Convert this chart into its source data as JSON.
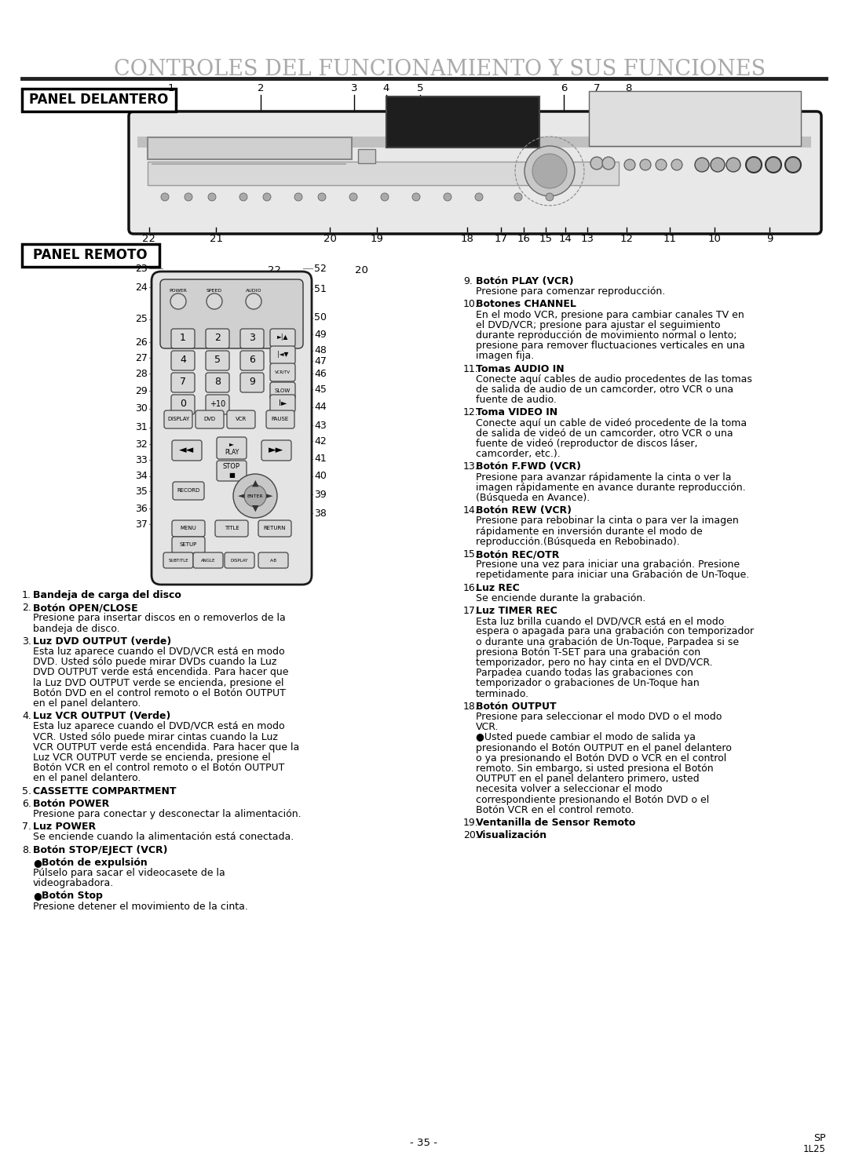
{
  "title": "CONTROLES DEL FUNCIONAMIENTO Y SUS FUNCIONES",
  "panel_delantero": "PANEL DELANTERO",
  "panel_remoto": "PANEL REMOTO",
  "background": "#ffffff",
  "title_gray": "#aaaaaa",
  "page_number": "- 35 -",
  "left_items": [
    [
      "1.",
      "Bandeja de carga del disco",
      ""
    ],
    [
      "2.",
      "Botón OPEN/CLOSE",
      "Presione para insertar discos en o removerlos de la\nbandeja de disco."
    ],
    [
      "3.",
      "Luz DVD OUTPUT (verde)",
      "Esta luz aparece cuando el DVD/VCR está en modo\nDVD. Usted sólo puede mirar DVDs cuando la Luz\nDVD OUTPUT verde está encendida. Para hacer que\nla Luz DVD OUTPUT verde se encienda, presione el\nBotón DVD en el control remoto o el Botón OUTPUT\nen el panel delantero."
    ],
    [
      "4.",
      "Luz VCR OUTPUT (Verde)",
      "Esta luz aparece cuando el DVD/VCR está en modo\nVCR. Usted sólo puede mirar cintas cuando la Luz\nVCR OUTPUT verde está encendida. Para hacer que la\nLuz VCR OUTPUT verde se encienda, presione el\nBotón VCR en el control remoto o el Botón OUTPUT\nen el panel delantero."
    ],
    [
      "5.",
      "CASSETTE COMPARTMENT",
      ""
    ],
    [
      "6.",
      "Botón POWER",
      "Presione para conectar y desconectar la alimentación."
    ],
    [
      "7.",
      "Luz POWER",
      "Se enciende cuando la alimentación está conectada."
    ],
    [
      "8.",
      "Botón STOP/EJECT (VCR)",
      ""
    ],
    [
      "●",
      "Botón de expulsión",
      "Púlselo para sacar el videocasete de la\nvideograbadora."
    ],
    [
      "●",
      "Botón Stop",
      "Presione detener el movimiento de la cinta."
    ]
  ],
  "right_items": [
    [
      "9.",
      "Botón PLAY (VCR)",
      "Presione para comenzar reproducción."
    ],
    [
      "10.",
      "Botones CHANNEL",
      "En el modo VCR, presione para cambiar canales TV en\nel DVD/VCR; presione para ajustar el seguimiento\ndurante reproducción de movimiento normal o lento;\npresione para remover fluctuaciones verticales en una\nimagen fija."
    ],
    [
      "11.",
      "Tomas AUDIO IN",
      "Conecte aquí cables de audio procedentes de las tomas\nde salida de audio de un camcorder, otro VCR o una\nfuente de audio."
    ],
    [
      "12.",
      "Toma VIDEO IN",
      "Conecte aquí un cable de videó procedente de la toma\nde salida de videó de un camcorder, otro VCR o una\nfuente de videó (reproductor de discos láser,\ncamcorder, etc.)."
    ],
    [
      "13.",
      "Botón F.FWD (VCR)",
      "Presione para avanzar rápidamente la cinta o ver la\nimagen rápidamente en avance durante reproducción.\n(Búsqueda en Avance)."
    ],
    [
      "14.",
      "Botón REW (VCR)",
      "Presione para rebobinar la cinta o para ver la imagen\nrápidamente en inversión durante el modo de\nreproducción.(Búsqueda en Rebobinado)."
    ],
    [
      "15.",
      "Botón REC/OTR",
      "Presione una vez para iniciar una grabación. Presione\nrepetidamente para iniciar una Grabación de Un-Toque."
    ],
    [
      "16.",
      "Luz REC",
      "Se enciende durante la grabación."
    ],
    [
      "17.",
      "Luz TIMER REC",
      "Esta luz brilla cuando el DVD/VCR está en el modo\nespera o apagada para una grabación con temporizador\no durante una grabación de Un-Toque, Parpadea si se\npresiona Botón T-SET para una grabación con\ntemporizador, pero no hay cinta en el DVD/VCR.\nParpadea cuando todas las grabaciones con\ntemporizador o grabaciones de Un-Toque han\nterminado."
    ],
    [
      "18.",
      "Botón OUTPUT",
      "Presione para seleccionar el modo DVD o el modo\nVCR.\n●Usted puede cambiar el modo de salida ya\npresionando el Botón OUTPUT en el panel delantero\no ya presionando el Botón DVD o VCR en el control\nremoto. Sin embargo, si usted presiona el Botón\nOUTPUT en el panel delantero primero, usted\nnecesita volver a seleccionar el modo\ncorrespondiente presionando el Botón DVD o el\nBotón VCR en el control remoto."
    ],
    [
      "19.",
      "Ventanilla de Sensor Remoto",
      ""
    ],
    [
      "20.",
      "Visualización",
      ""
    ]
  ],
  "top_nums": [
    [
      "1",
      218
    ],
    [
      "2",
      332
    ],
    [
      "3",
      451
    ],
    [
      "4",
      492
    ],
    [
      "5",
      535
    ],
    [
      "6",
      718
    ],
    [
      "7",
      760
    ],
    [
      "8",
      800
    ]
  ],
  "bot_nums": [
    [
      "22",
      190
    ],
    [
      "21",
      275
    ],
    [
      "20",
      420
    ],
    [
      "19",
      480
    ],
    [
      "18",
      595
    ],
    [
      "17",
      638
    ],
    [
      "16",
      667
    ],
    [
      "15",
      695
    ],
    [
      "14",
      720
    ],
    [
      "13",
      748
    ],
    [
      "12",
      798
    ],
    [
      "11",
      853
    ],
    [
      "10",
      910
    ],
    [
      "9",
      980
    ]
  ],
  "rem_left_y": [
    342,
    366,
    407,
    436,
    456,
    476,
    498,
    521,
    545,
    566,
    586,
    607,
    626,
    648,
    668
  ],
  "rem_right_y": [
    342,
    368,
    405,
    426,
    447,
    460,
    476,
    496,
    519,
    542,
    562,
    585,
    607,
    630,
    654
  ]
}
